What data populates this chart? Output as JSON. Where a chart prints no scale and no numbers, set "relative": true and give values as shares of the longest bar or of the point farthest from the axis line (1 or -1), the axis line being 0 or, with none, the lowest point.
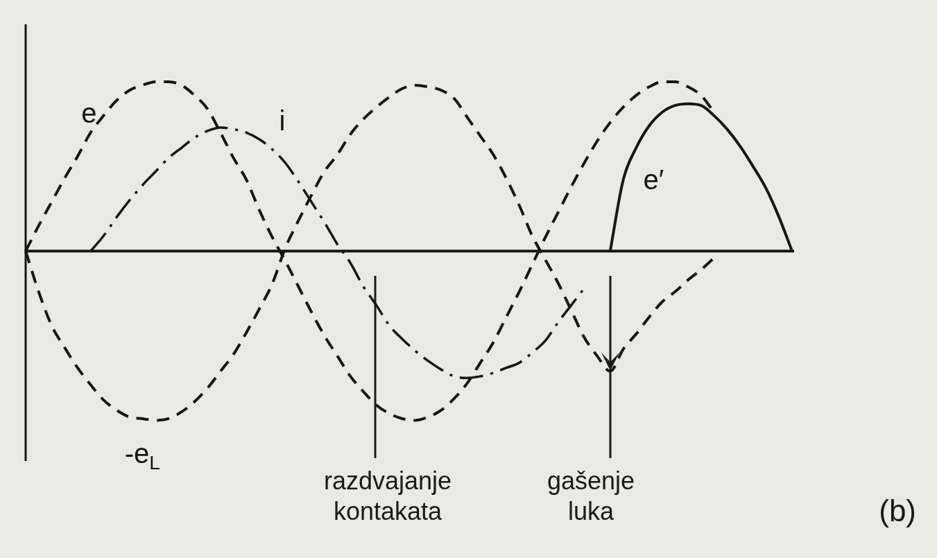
{
  "chart_data": {
    "type": "line",
    "relative": true,
    "marker": "none",
    "legend": false,
    "categories": [
      null,
      null,
      null,
      null,
      null,
      null,
      null,
      null,
      null,
      null,
      null,
      null,
      null,
      null,
      null,
      null,
      null,
      null,
      null,
      null,
      null,
      null,
      null,
      null,
      null,
      null,
      null,
      null,
      null,
      null,
      null,
      null,
      null,
      null,
      null,
      null,
      null,
      null,
      null,
      null,
      null,
      null,
      null,
      null,
      null,
      null,
      null,
      null,
      null,
      null,
      null,
      null,
      null,
      null,
      null,
      null,
      null,
      null,
      null,
      null
    ],
    "series": [
      {
        "name": "e",
        "color": "#161616",
        "line_style": "dashed",
        "values": [
          0,
          0.15,
          0.29,
          0.43,
          0.56,
          0.7,
          0.8,
          0.89,
          0.95,
          0.98,
          1,
          1,
          0.98,
          0.92,
          0.84,
          0.7,
          0.55,
          0.42,
          0.24,
          0.08,
          -0.06,
          -0.21,
          -0.36,
          -0.5,
          -0.62,
          -0.74,
          -0.83,
          -0.91,
          -0.96,
          -0.99,
          -1,
          -0.98,
          -0.94,
          -0.87,
          -0.78,
          -0.66,
          -0.54,
          -0.39,
          -0.24,
          -0.08,
          0.08,
          0.23,
          0.38,
          0.52,
          0.65,
          0.76,
          0.85,
          0.92,
          0.97,
          1,
          1,
          0.97,
          0.92,
          0.82,
          null,
          null,
          null,
          null,
          null,
          null
        ]
      },
      {
        "name": "i",
        "color": "#161616",
        "line_style": "dashdot",
        "values": [
          null,
          null,
          null,
          null,
          null,
          0,
          0.09,
          0.2,
          0.3,
          0.39,
          0.47,
          0.55,
          0.61,
          0.67,
          0.71,
          0.73,
          0.72,
          0.7,
          0.66,
          0.6,
          0.52,
          0.41,
          0.29,
          0.17,
          0.04,
          -0.07,
          -0.21,
          -0.32,
          -0.44,
          -0.52,
          -0.59,
          -0.65,
          -0.7,
          -0.74,
          -0.75,
          -0.74,
          -0.72,
          -0.69,
          -0.66,
          -0.6,
          -0.53,
          -0.42,
          -0.32,
          -0.22,
          null,
          null,
          null,
          null,
          null,
          null,
          null,
          null,
          null,
          null,
          null,
          null,
          null,
          null,
          null,
          null
        ]
      },
      {
        "name": "-e$_{L}$",
        "color": "#161616",
        "line_style": "dashed",
        "values": [
          0,
          -0.24,
          -0.44,
          -0.57,
          -0.69,
          -0.79,
          -0.88,
          -0.94,
          -0.98,
          -0.99,
          -1,
          -0.99,
          -0.95,
          -0.89,
          -0.81,
          -0.71,
          -0.61,
          -0.48,
          -0.34,
          -0.19,
          0.02,
          0.18,
          0.33,
          0.47,
          0.57,
          0.69,
          0.78,
          0.85,
          0.91,
          0.96,
          0.98,
          0.97,
          0.95,
          0.9,
          0.79,
          0.68,
          0.57,
          0.43,
          0.27,
          0.09,
          -0.05,
          -0.19,
          -0.35,
          -0.51,
          -0.62,
          -0.71,
          -0.58,
          -0.49,
          -0.39,
          -0.3,
          -0.24,
          -0.17,
          -0.11,
          -0.04,
          null,
          null,
          null,
          null,
          null,
          null
        ]
      },
      {
        "name": "e′",
        "color": "#161616",
        "line_style": "solid",
        "values": [
          null,
          null,
          null,
          null,
          null,
          null,
          null,
          null,
          null,
          null,
          null,
          null,
          null,
          null,
          null,
          null,
          null,
          null,
          null,
          null,
          null,
          null,
          null,
          null,
          null,
          null,
          null,
          null,
          null,
          null,
          null,
          null,
          null,
          null,
          null,
          null,
          null,
          null,
          null,
          null,
          null,
          null,
          null,
          null,
          null,
          0,
          0.42,
          0.61,
          0.74,
          0.82,
          0.86,
          0.87,
          0.86,
          0.8,
          0.72,
          0.62,
          0.5,
          0.37,
          0.2,
          0
        ]
      }
    ],
    "annotations": [
      "razdvajanje kontakata",
      "gašenje luka",
      "(b)"
    ]
  }
}
